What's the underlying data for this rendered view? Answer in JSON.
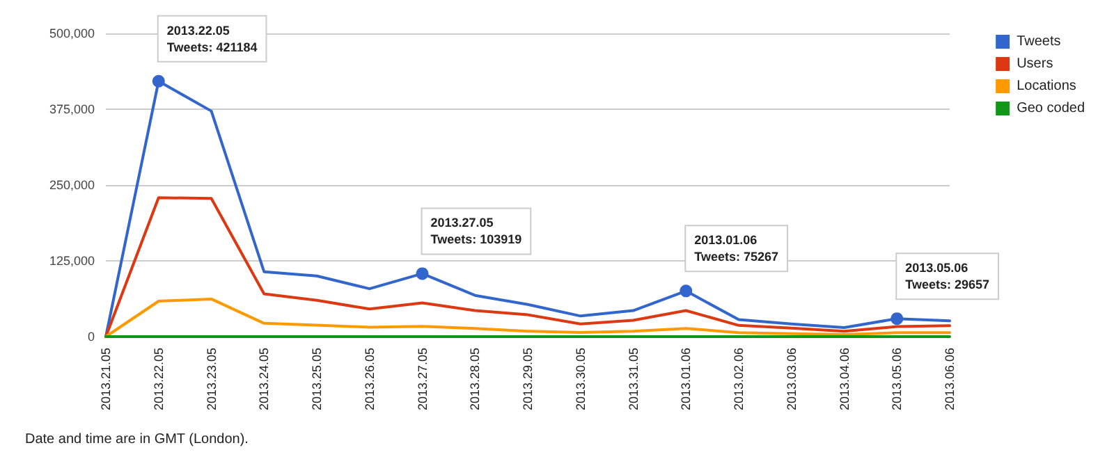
{
  "chart_data": {
    "type": "line",
    "categories": [
      "2013.21.05",
      "2013.22.05",
      "2013.23.05",
      "2013.24.05",
      "2013.25.05",
      "2013.26.05",
      "2013.27.05",
      "2013.28.05",
      "2013.29.05",
      "2013.30.05",
      "2013.31.05",
      "2013.01.06",
      "2013.02.06",
      "2013.03.06",
      "2013.04.06",
      "2013.05.06",
      "2013.06.06"
    ],
    "series": [
      {
        "name": "Tweets",
        "color": "#3366cc",
        "values": [
          0,
          421184,
          372000,
          107000,
          100000,
          79000,
          103919,
          68000,
          53000,
          34000,
          43000,
          75267,
          28000,
          21000,
          15000,
          29657,
          26000
        ]
      },
      {
        "name": "Users",
        "color": "#dc3912",
        "values": [
          0,
          229000,
          228000,
          70500,
          60000,
          45500,
          55500,
          43000,
          36000,
          21000,
          27000,
          43000,
          18500,
          14000,
          9000,
          16500,
          18000
        ]
      },
      {
        "name": "Locations",
        "color": "#ff9900",
        "values": [
          0,
          58500,
          62000,
          22000,
          19000,
          15500,
          17000,
          13500,
          9000,
          7000,
          9000,
          13500,
          6500,
          5000,
          3500,
          6500,
          6500
        ]
      },
      {
        "name": "Geo coded",
        "color": "#109618",
        "values": [
          0,
          0,
          0,
          0,
          0,
          0,
          0,
          0,
          0,
          0,
          0,
          0,
          0,
          0,
          0,
          0,
          0
        ]
      }
    ],
    "ylim": [
      0,
      500000
    ],
    "yticks": [
      0,
      {
        "value": 125000,
        "label": "125,000"
      },
      {
        "value": 250000,
        "label": "250,000"
      },
      {
        "value": 375000,
        "label": "375,000"
      },
      {
        "value": 500000,
        "label": "500,000"
      }
    ],
    "grid": "y",
    "legend": "top right",
    "marker": "none",
    "line_style": "solid",
    "annotations": [
      {
        "text": "2013.22.05\nTweets: 421184",
        "x": "2013.22.05",
        "y": 421184
      },
      {
        "text": "2013.27.05\nTweets: 103919",
        "x": "2013.27.05",
        "y": 103919
      },
      {
        "text": "2013.01.06\nTweets: 75267",
        "x": "2013.01.06",
        "y": 75267
      },
      {
        "text": "2013.05.06\nTweets: 29657",
        "x": "2013.05.06",
        "y": 29657
      },
      "Date and time are in GMT (London)."
    ]
  }
}
